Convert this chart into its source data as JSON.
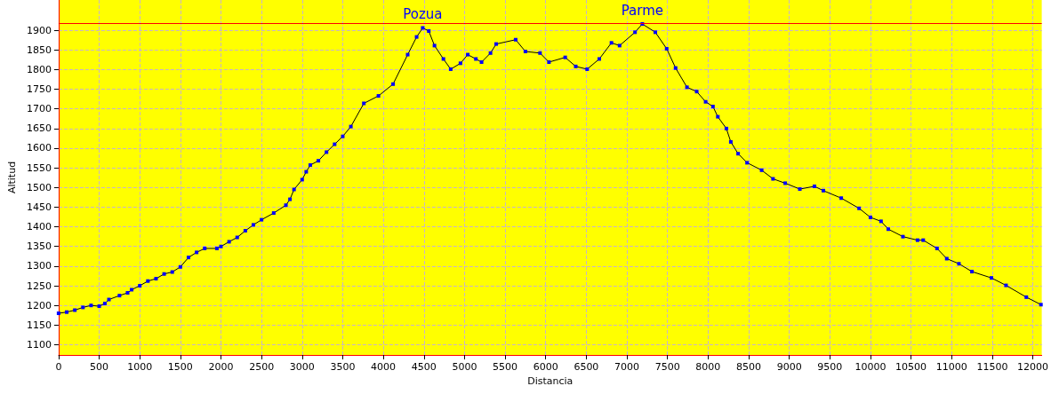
{
  "chart_data": {
    "type": "line",
    "xlabel": "Distancia",
    "ylabel": "Altitud",
    "xlim": [
      0,
      12110
    ],
    "ylim": [
      1074,
      1977
    ],
    "xticks": [
      0,
      500,
      1000,
      1500,
      2000,
      2500,
      3000,
      3500,
      4000,
      4500,
      5000,
      5500,
      6000,
      6500,
      7000,
      7500,
      8000,
      8500,
      9000,
      9500,
      10000,
      10500,
      11000,
      11500,
      12000
    ],
    "yticks": [
      1100,
      1150,
      1200,
      1250,
      1300,
      1350,
      1400,
      1450,
      1500,
      1550,
      1600,
      1650,
      1700,
      1750,
      1800,
      1850,
      1900
    ],
    "grid": true,
    "marker": "square",
    "line_style": "solid",
    "ref_lines": [
      {
        "axis": "y",
        "value": 1917,
        "color": "#ff0000"
      }
    ],
    "annotations": [
      {
        "text": "Pozua",
        "x": 4485,
        "y": 1906
      },
      {
        "text": "Parme",
        "x": 7190,
        "y": 1916
      }
    ],
    "series": [
      {
        "color": "#0000ff",
        "x": [
          0,
          100,
          200,
          300,
          400,
          500,
          570,
          620,
          750,
          850,
          900,
          1000,
          1100,
          1200,
          1300,
          1400,
          1500,
          1600,
          1700,
          1800,
          1950,
          2000,
          2100,
          2200,
          2300,
          2400,
          2500,
          2650,
          2800,
          2850,
          2900,
          3000,
          3050,
          3100,
          3200,
          3300,
          3400,
          3500,
          3600,
          3760,
          3940,
          4120,
          4300,
          4410,
          4485,
          4560,
          4630,
          4740,
          4830,
          4950,
          5040,
          5140,
          5210,
          5320,
          5390,
          5630,
          5750,
          5930,
          6040,
          6240,
          6370,
          6510,
          6660,
          6810,
          6910,
          7100,
          7190,
          7350,
          7490,
          7600,
          7740,
          7860,
          7970,
          8060,
          8120,
          8225,
          8280,
          8370,
          8480,
          8660,
          8800,
          8950,
          9130,
          9310,
          9420,
          9640,
          9860,
          10000,
          10130,
          10220,
          10400,
          10580,
          10650,
          10820,
          10940,
          11090,
          11250,
          11490,
          11670,
          11920,
          12100
        ],
        "values": [
          1180,
          1183,
          1188,
          1195,
          1200,
          1198,
          1205,
          1215,
          1225,
          1232,
          1240,
          1250,
          1262,
          1268,
          1280,
          1285,
          1298,
          1322,
          1335,
          1345,
          1345,
          1350,
          1362,
          1373,
          1390,
          1405,
          1418,
          1435,
          1455,
          1470,
          1495,
          1520,
          1540,
          1557,
          1568,
          1590,
          1610,
          1630,
          1655,
          1714,
          1733,
          1763,
          1838,
          1883,
          1906,
          1898,
          1861,
          1827,
          1801,
          1816,
          1838,
          1827,
          1819,
          1842,
          1865,
          1876,
          1846,
          1842,
          1819,
          1831,
          1808,
          1801,
          1827,
          1868,
          1861,
          1895,
          1916,
          1895,
          1853,
          1804,
          1755,
          1744,
          1718,
          1706,
          1680,
          1650,
          1616,
          1586,
          1563,
          1544,
          1522,
          1511,
          1496,
          1503,
          1492,
          1473,
          1447,
          1424,
          1414,
          1394,
          1375,
          1366,
          1366,
          1345,
          1319,
          1306,
          1286,
          1270,
          1251,
          1221,
          1202
        ]
      }
    ]
  }
}
